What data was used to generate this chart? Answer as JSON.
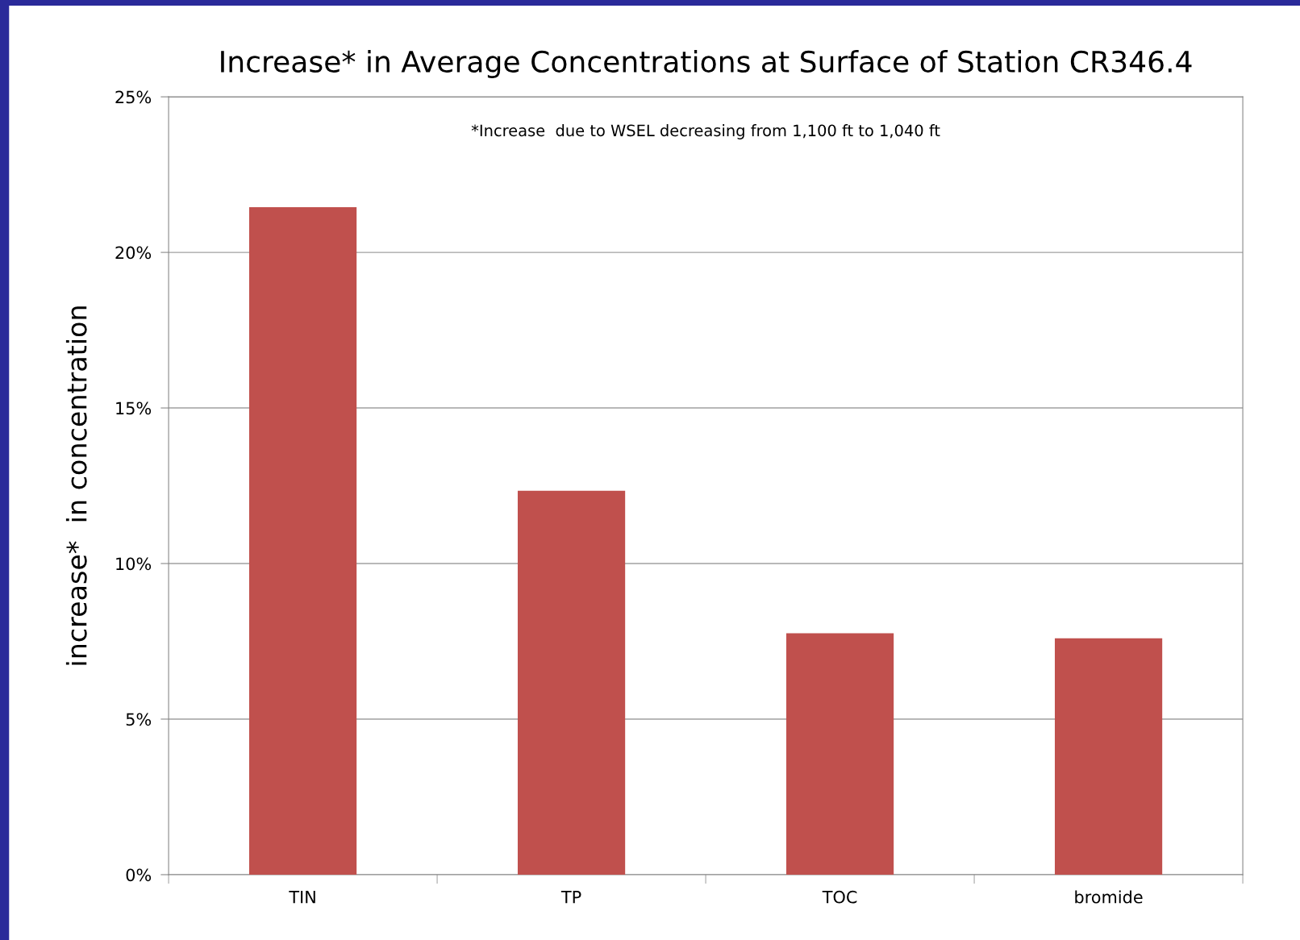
{
  "chart_data": {
    "type": "bar",
    "title": "Increase* in Average Concentrations at Surface of Station CR346.4",
    "ylabel": "increase*  in concentration",
    "categories": [
      "TIN",
      "TP",
      "TOC",
      "bromide"
    ],
    "values": [
      21.45,
      12.34,
      7.76,
      7.6
    ],
    "color": "#c0504d",
    "ylim": [
      0,
      25
    ],
    "yticks": [
      {
        "value": 0,
        "label": "0%"
      },
      {
        "value": 5,
        "label": "5%"
      },
      {
        "value": 10,
        "label": "10%"
      },
      {
        "value": 15,
        "label": "15%"
      },
      {
        "value": 20,
        "label": "20%"
      },
      {
        "value": 25,
        "label": "25%"
      }
    ],
    "grid": "y",
    "legend": false,
    "annotations": [
      "*Increase  due to WSEL decreasing from 1,100 ft to 1,040 ft"
    ]
  }
}
